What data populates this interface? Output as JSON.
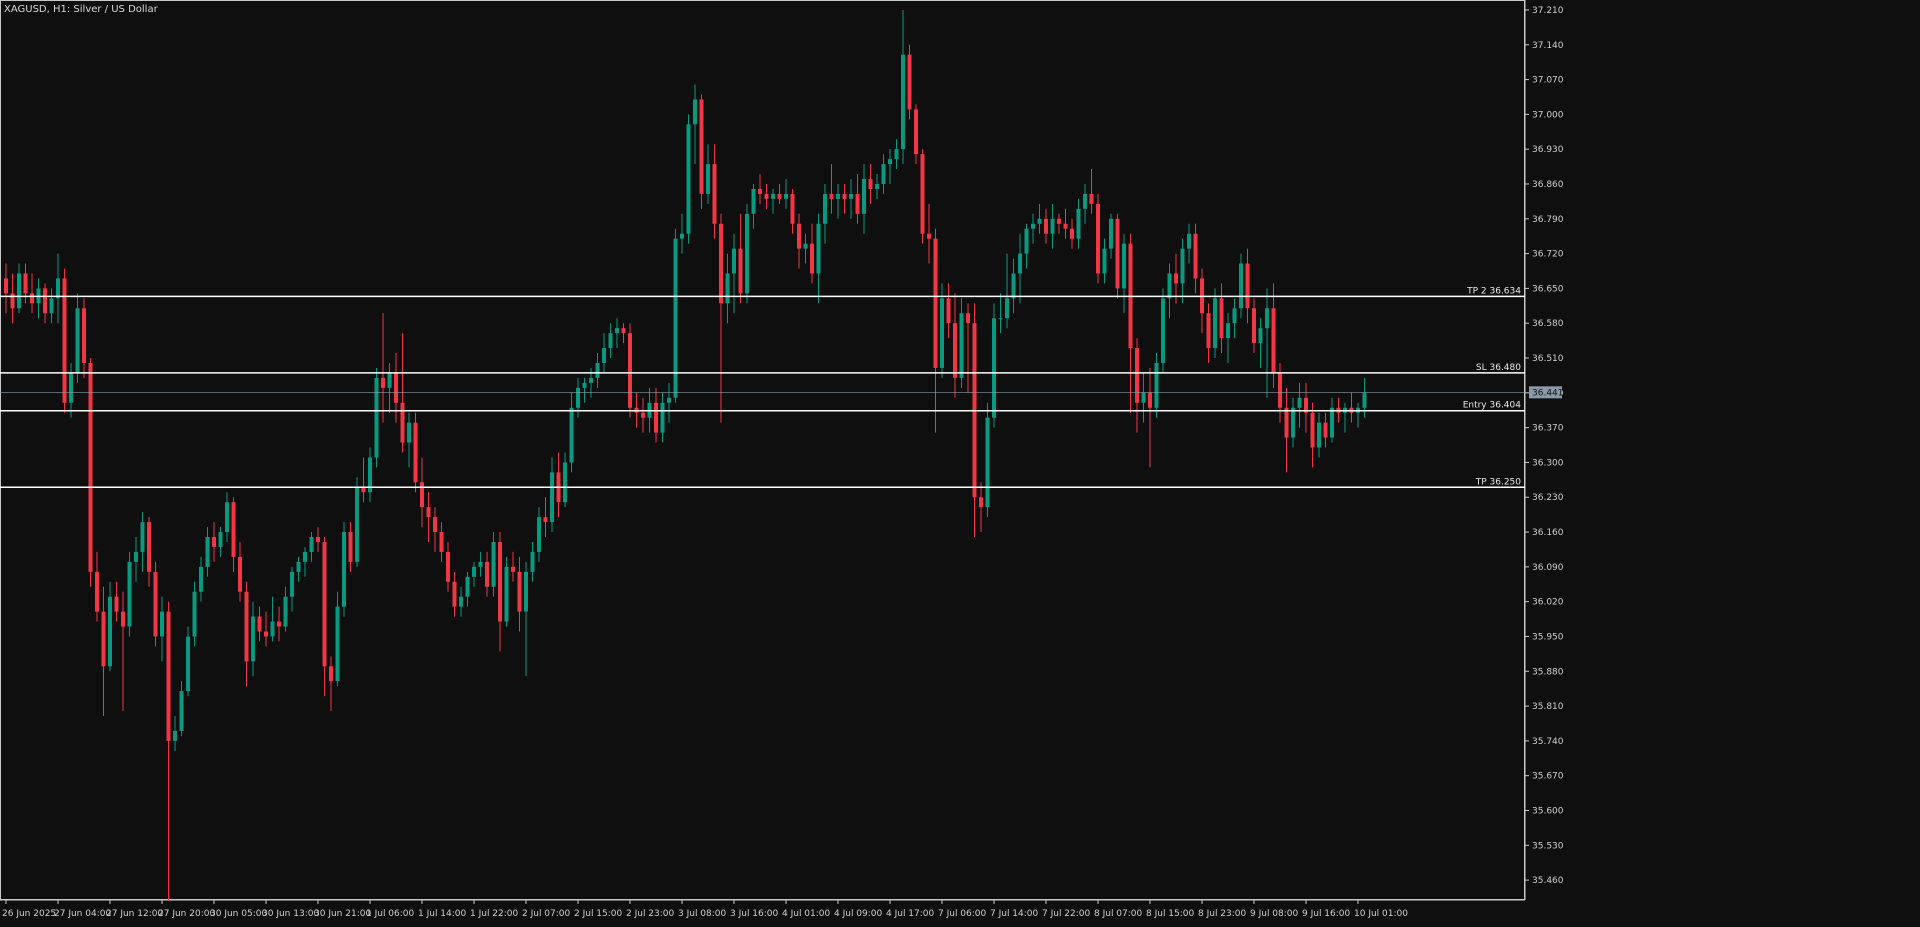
{
  "chart_data": {
    "type": "candlestick",
    "title": "XAGUSD, H1:  Silver / US Dollar",
    "symbol": "XAGUSD",
    "timeframe": "H1",
    "ylim": [
      35.42,
      37.23
    ],
    "y_ticks": [
      "37.210",
      "37.140",
      "37.070",
      "37.000",
      "36.930",
      "36.860",
      "36.790",
      "36.720",
      "36.650",
      "36.580",
      "36.510",
      "36.440",
      "36.370",
      "36.300",
      "36.230",
      "36.160",
      "36.090",
      "36.020",
      "35.950",
      "35.880",
      "35.810",
      "35.740",
      "35.670",
      "35.600",
      "35.530",
      "35.460"
    ],
    "x_ticks": [
      {
        "index": 0,
        "label": "26 Jun 2025"
      },
      {
        "index": 8,
        "label": "27 Jun 04:00"
      },
      {
        "index": 16,
        "label": "27 Jun 12:00"
      },
      {
        "index": 24,
        "label": "27 Jun 20:00"
      },
      {
        "index": 32,
        "label": "30 Jun 05:00"
      },
      {
        "index": 40,
        "label": "30 Jun 13:00"
      },
      {
        "index": 48,
        "label": "30 Jun 21:00"
      },
      {
        "index": 56,
        "label": "1 Jul 06:00"
      },
      {
        "index": 64,
        "label": "1 Jul 14:00"
      },
      {
        "index": 72,
        "label": "1 Jul 22:00"
      },
      {
        "index": 80,
        "label": "2 Jul 07:00"
      },
      {
        "index": 88,
        "label": "2 Jul 15:00"
      },
      {
        "index": 96,
        "label": "2 Jul 23:00"
      },
      {
        "index": 104,
        "label": "3 Jul 08:00"
      },
      {
        "index": 112,
        "label": "3 Jul 16:00"
      },
      {
        "index": 120,
        "label": "4 Jul 01:00"
      },
      {
        "index": 128,
        "label": "4 Jul 09:00"
      },
      {
        "index": 136,
        "label": "4 Jul 17:00"
      },
      {
        "index": 144,
        "label": "7 Jul 06:00"
      },
      {
        "index": 152,
        "label": "7 Jul 14:00"
      },
      {
        "index": 160,
        "label": "7 Jul 22:00"
      },
      {
        "index": 168,
        "label": "8 Jul 07:00"
      },
      {
        "index": 176,
        "label": "8 Jul 15:00"
      },
      {
        "index": 184,
        "label": "8 Jul 23:00"
      },
      {
        "index": 192,
        "label": "9 Jul 08:00"
      },
      {
        "index": 200,
        "label": "9 Jul 16:00"
      },
      {
        "index": 208,
        "label": "10 Jul 01:00"
      }
    ],
    "levels": [
      {
        "name": "TP 2",
        "label": "TP 2 36.634",
        "value": 36.634,
        "color": "#ffffff"
      },
      {
        "name": "SL",
        "label": "SL 36.480",
        "value": 36.48,
        "color": "#ffffff"
      },
      {
        "name": "Entry",
        "label": "Entry 36.404",
        "value": 36.404,
        "color": "#ffffff"
      },
      {
        "name": "TP",
        "label": "TP 36.250",
        "value": 36.25,
        "color": "#ffffff"
      }
    ],
    "current_price": {
      "value": 36.441,
      "label": "36.441",
      "color": "#8a9aa8"
    },
    "colors": {
      "up": "#089981",
      "down": "#f23645",
      "background": "#0f0f0f",
      "grid_text": "#d0d0d0"
    },
    "candles": [
      [
        36.67,
        36.7,
        36.6,
        36.64
      ],
      [
        36.64,
        36.68,
        36.58,
        36.61
      ],
      [
        36.61,
        36.7,
        36.6,
        36.68
      ],
      [
        36.68,
        36.7,
        36.62,
        36.64
      ],
      [
        36.64,
        36.68,
        36.6,
        36.62
      ],
      [
        36.62,
        36.67,
        36.59,
        36.65
      ],
      [
        36.65,
        36.66,
        36.58,
        36.6
      ],
      [
        36.6,
        36.65,
        36.58,
        36.63
      ],
      [
        36.63,
        36.72,
        36.58,
        36.67
      ],
      [
        36.67,
        36.69,
        36.4,
        36.42
      ],
      [
        36.42,
        36.5,
        36.39,
        36.48
      ],
      [
        36.48,
        36.64,
        36.46,
        36.61
      ],
      [
        36.61,
        36.63,
        36.47,
        36.5
      ],
      [
        36.5,
        36.51,
        36.05,
        36.08
      ],
      [
        36.08,
        36.12,
        35.98,
        36.0
      ],
      [
        36.0,
        36.05,
        35.79,
        35.89
      ],
      [
        35.89,
        36.06,
        35.88,
        36.03
      ],
      [
        36.03,
        36.06,
        35.98,
        36.0
      ],
      [
        36.0,
        36.04,
        35.8,
        35.97
      ],
      [
        35.97,
        36.12,
        35.95,
        36.1
      ],
      [
        36.1,
        36.15,
        36.06,
        36.12
      ],
      [
        36.12,
        36.2,
        36.08,
        36.18
      ],
      [
        36.18,
        36.19,
        36.05,
        36.08
      ],
      [
        36.08,
        36.1,
        35.93,
        35.95
      ],
      [
        35.95,
        36.03,
        35.9,
        36.0
      ],
      [
        36.0,
        36.02,
        35.42,
        35.74
      ],
      [
        35.74,
        35.79,
        35.72,
        35.76
      ],
      [
        35.76,
        35.86,
        35.75,
        35.84
      ],
      [
        35.84,
        35.97,
        35.83,
        35.95
      ],
      [
        35.95,
        36.06,
        35.93,
        36.04
      ],
      [
        36.04,
        36.11,
        36.02,
        36.09
      ],
      [
        36.09,
        36.17,
        36.07,
        36.15
      ],
      [
        36.15,
        36.18,
        36.1,
        36.13
      ],
      [
        36.13,
        36.17,
        36.11,
        36.16
      ],
      [
        36.16,
        36.24,
        36.14,
        36.22
      ],
      [
        36.22,
        36.23,
        36.08,
        36.11
      ],
      [
        36.11,
        36.14,
        36.02,
        36.04
      ],
      [
        36.04,
        36.06,
        35.85,
        35.9
      ],
      [
        35.9,
        36.02,
        35.87,
        35.99
      ],
      [
        35.99,
        36.01,
        35.94,
        35.96
      ],
      [
        35.96,
        36.0,
        35.93,
        35.95
      ],
      [
        35.95,
        36.03,
        35.94,
        35.98
      ],
      [
        35.98,
        36.01,
        35.94,
        35.97
      ],
      [
        35.97,
        36.05,
        35.96,
        36.03
      ],
      [
        36.03,
        36.09,
        36.0,
        36.08
      ],
      [
        36.08,
        36.11,
        36.06,
        36.1
      ],
      [
        36.1,
        36.13,
        36.07,
        36.12
      ],
      [
        36.12,
        36.16,
        36.1,
        36.15
      ],
      [
        36.15,
        36.17,
        36.12,
        36.14
      ],
      [
        36.14,
        36.15,
        35.83,
        35.89
      ],
      [
        35.89,
        35.91,
        35.8,
        35.86
      ],
      [
        35.86,
        36.04,
        35.85,
        36.01
      ],
      [
        36.01,
        36.18,
        35.99,
        36.16
      ],
      [
        36.16,
        36.18,
        36.08,
        36.1
      ],
      [
        36.1,
        36.27,
        36.09,
        36.25
      ],
      [
        36.25,
        36.31,
        36.22,
        36.24
      ],
      [
        36.24,
        36.33,
        36.22,
        36.31
      ],
      [
        36.31,
        36.49,
        36.29,
        36.47
      ],
      [
        36.47,
        36.6,
        36.38,
        36.45
      ],
      [
        36.45,
        36.5,
        36.4,
        36.48
      ],
      [
        36.48,
        36.52,
        36.38,
        36.42
      ],
      [
        36.42,
        36.56,
        36.32,
        36.34
      ],
      [
        36.34,
        36.4,
        36.29,
        36.38
      ],
      [
        36.38,
        36.4,
        36.24,
        36.26
      ],
      [
        36.26,
        36.31,
        36.17,
        36.21
      ],
      [
        36.21,
        36.24,
        36.14,
        36.19
      ],
      [
        36.19,
        36.21,
        36.12,
        36.16
      ],
      [
        36.16,
        36.18,
        36.1,
        36.12
      ],
      [
        36.12,
        36.14,
        36.04,
        36.06
      ],
      [
        36.06,
        36.08,
        35.99,
        36.01
      ],
      [
        36.01,
        36.05,
        35.99,
        36.03
      ],
      [
        36.03,
        36.08,
        36.01,
        36.07
      ],
      [
        36.07,
        36.1,
        36.05,
        36.09
      ],
      [
        36.09,
        36.12,
        36.07,
        36.1
      ],
      [
        36.1,
        36.12,
        36.03,
        36.05
      ],
      [
        36.05,
        36.16,
        36.03,
        36.14
      ],
      [
        36.14,
        36.16,
        35.92,
        35.98
      ],
      [
        35.98,
        36.11,
        35.97,
        36.09
      ],
      [
        36.09,
        36.12,
        36.06,
        36.08
      ],
      [
        36.08,
        36.11,
        35.96,
        36.0
      ],
      [
        36.0,
        36.1,
        35.87,
        36.08
      ],
      [
        36.08,
        36.14,
        36.06,
        36.12
      ],
      [
        36.12,
        36.21,
        36.1,
        36.19
      ],
      [
        36.19,
        36.23,
        36.15,
        36.18
      ],
      [
        36.18,
        36.31,
        36.16,
        36.28
      ],
      [
        36.28,
        36.32,
        36.19,
        36.22
      ],
      [
        36.22,
        36.32,
        36.21,
        36.3
      ],
      [
        36.3,
        36.44,
        36.28,
        36.41
      ],
      [
        36.41,
        36.47,
        36.39,
        36.45
      ],
      [
        36.45,
        36.47,
        36.42,
        36.46
      ],
      [
        36.46,
        36.49,
        36.43,
        36.47
      ],
      [
        36.47,
        36.52,
        36.45,
        36.5
      ],
      [
        36.5,
        36.56,
        36.48,
        36.53
      ],
      [
        36.53,
        36.58,
        36.51,
        36.56
      ],
      [
        36.56,
        36.59,
        36.53,
        36.57
      ],
      [
        36.57,
        36.58,
        36.54,
        36.56
      ],
      [
        36.56,
        36.58,
        36.39,
        36.41
      ],
      [
        36.41,
        36.44,
        36.37,
        36.4
      ],
      [
        36.4,
        36.43,
        36.36,
        36.39
      ],
      [
        36.39,
        36.45,
        36.36,
        36.42
      ],
      [
        36.42,
        36.45,
        36.34,
        36.36
      ],
      [
        36.36,
        36.44,
        36.34,
        36.42
      ],
      [
        36.42,
        36.46,
        36.38,
        36.43
      ],
      [
        36.43,
        36.77,
        36.42,
        36.75
      ],
      [
        36.75,
        36.8,
        36.72,
        36.76
      ],
      [
        36.76,
        37.0,
        36.74,
        36.98
      ],
      [
        36.98,
        37.06,
        36.9,
        37.03
      ],
      [
        37.03,
        37.04,
        36.81,
        36.84
      ],
      [
        36.84,
        36.94,
        36.82,
        36.9
      ],
      [
        36.9,
        36.94,
        36.75,
        36.78
      ],
      [
        36.78,
        36.8,
        36.38,
        36.62
      ],
      [
        36.62,
        36.72,
        36.58,
        36.68
      ],
      [
        36.68,
        36.76,
        36.6,
        36.73
      ],
      [
        36.73,
        36.8,
        36.62,
        36.64
      ],
      [
        36.64,
        36.82,
        36.62,
        36.8
      ],
      [
        36.8,
        36.86,
        36.77,
        36.85
      ],
      [
        36.85,
        36.88,
        36.82,
        36.84
      ],
      [
        36.84,
        36.86,
        36.81,
        36.83
      ],
      [
        36.83,
        36.85,
        36.8,
        36.84
      ],
      [
        36.84,
        36.86,
        36.82,
        36.83
      ],
      [
        36.83,
        36.87,
        36.81,
        36.84
      ],
      [
        36.84,
        36.85,
        36.76,
        36.78
      ],
      [
        36.78,
        36.8,
        36.69,
        36.73
      ],
      [
        36.73,
        36.76,
        36.7,
        36.74
      ],
      [
        36.74,
        36.78,
        36.66,
        36.68
      ],
      [
        36.68,
        36.8,
        36.62,
        36.78
      ],
      [
        36.78,
        36.86,
        36.74,
        36.84
      ],
      [
        36.84,
        36.9,
        36.8,
        36.83
      ],
      [
        36.83,
        36.86,
        36.79,
        36.84
      ],
      [
        36.84,
        36.86,
        36.8,
        36.83
      ],
      [
        36.83,
        36.87,
        36.79,
        36.84
      ],
      [
        36.84,
        36.88,
        36.78,
        36.8
      ],
      [
        36.8,
        36.9,
        36.76,
        36.87
      ],
      [
        36.87,
        36.9,
        36.82,
        36.85
      ],
      [
        36.85,
        36.88,
        36.83,
        36.86
      ],
      [
        36.86,
        36.92,
        36.84,
        36.9
      ],
      [
        36.9,
        36.93,
        36.86,
        36.91
      ],
      [
        36.91,
        36.95,
        36.89,
        36.93
      ],
      [
        36.93,
        37.21,
        36.9,
        37.12
      ],
      [
        37.12,
        37.14,
        36.99,
        37.01
      ],
      [
        37.01,
        37.02,
        36.9,
        36.92
      ],
      [
        36.92,
        36.93,
        36.74,
        36.76
      ],
      [
        36.76,
        36.82,
        36.7,
        36.75
      ],
      [
        36.75,
        36.77,
        36.36,
        36.49
      ],
      [
        36.49,
        36.66,
        36.47,
        36.63
      ],
      [
        36.63,
        36.66,
        36.55,
        36.58
      ],
      [
        36.58,
        36.64,
        36.43,
        36.47
      ],
      [
        36.47,
        36.63,
        36.45,
        36.6
      ],
      [
        36.6,
        36.62,
        36.44,
        36.58
      ],
      [
        36.58,
        36.62,
        36.15,
        36.23
      ],
      [
        36.23,
        36.26,
        36.16,
        36.21
      ],
      [
        36.21,
        36.42,
        36.19,
        36.39
      ],
      [
        36.39,
        36.62,
        36.37,
        36.59
      ],
      [
        36.59,
        36.64,
        36.56,
        36.59
      ],
      [
        36.59,
        36.72,
        36.57,
        36.63
      ],
      [
        36.63,
        36.71,
        36.6,
        36.68
      ],
      [
        36.68,
        36.76,
        36.62,
        36.72
      ],
      [
        36.72,
        36.78,
        36.69,
        36.77
      ],
      [
        36.77,
        36.8,
        36.74,
        36.78
      ],
      [
        36.78,
        36.82,
        36.76,
        36.79
      ],
      [
        36.79,
        36.81,
        36.74,
        36.76
      ],
      [
        36.76,
        36.82,
        36.73,
        36.79
      ],
      [
        36.79,
        36.8,
        36.76,
        36.78
      ],
      [
        36.78,
        36.81,
        36.75,
        36.77
      ],
      [
        36.77,
        36.79,
        36.73,
        36.75
      ],
      [
        36.75,
        36.83,
        36.73,
        36.81
      ],
      [
        36.81,
        36.86,
        36.78,
        36.84
      ],
      [
        36.84,
        36.89,
        36.8,
        36.82
      ],
      [
        36.82,
        36.84,
        36.66,
        36.68
      ],
      [
        36.68,
        36.75,
        36.66,
        36.73
      ],
      [
        36.73,
        36.8,
        36.71,
        36.79
      ],
      [
        36.79,
        36.8,
        36.63,
        36.65
      ],
      [
        36.65,
        36.76,
        36.6,
        36.74
      ],
      [
        36.74,
        36.76,
        36.4,
        36.53
      ],
      [
        36.53,
        36.55,
        36.36,
        36.42
      ],
      [
        36.42,
        36.48,
        36.38,
        36.44
      ],
      [
        36.44,
        36.49,
        36.29,
        36.41
      ],
      [
        36.41,
        36.52,
        36.39,
        36.5
      ],
      [
        36.5,
        36.65,
        36.48,
        36.63
      ],
      [
        36.63,
        36.7,
        36.59,
        36.68
      ],
      [
        36.68,
        36.72,
        36.62,
        36.66
      ],
      [
        36.66,
        36.75,
        36.62,
        36.73
      ],
      [
        36.73,
        36.78,
        36.7,
        36.76
      ],
      [
        36.76,
        36.78,
        36.64,
        36.67
      ],
      [
        36.67,
        36.69,
        36.56,
        36.6
      ],
      [
        36.6,
        36.62,
        36.5,
        36.53
      ],
      [
        36.53,
        36.65,
        36.51,
        36.63
      ],
      [
        36.63,
        36.66,
        36.52,
        36.55
      ],
      [
        36.55,
        36.6,
        36.5,
        36.58
      ],
      [
        36.58,
        36.63,
        36.55,
        36.61
      ],
      [
        36.61,
        36.72,
        36.59,
        36.7
      ],
      [
        36.7,
        36.73,
        36.58,
        36.61
      ],
      [
        36.61,
        36.63,
        36.52,
        36.54
      ],
      [
        36.54,
        36.59,
        36.49,
        36.57
      ],
      [
        36.57,
        36.65,
        36.43,
        36.61
      ],
      [
        36.61,
        36.66,
        36.45,
        36.48
      ],
      [
        36.48,
        36.5,
        36.38,
        36.41
      ],
      [
        36.41,
        36.45,
        36.28,
        36.35
      ],
      [
        36.35,
        36.43,
        36.33,
        36.41
      ],
      [
        36.41,
        36.46,
        36.37,
        36.43
      ],
      [
        36.43,
        36.46,
        36.36,
        36.4
      ],
      [
        36.4,
        36.42,
        36.29,
        36.33
      ],
      [
        36.33,
        36.4,
        36.31,
        36.38
      ],
      [
        36.38,
        36.4,
        36.33,
        36.35
      ],
      [
        36.35,
        36.43,
        36.34,
        36.41
      ],
      [
        36.41,
        36.43,
        36.38,
        36.4
      ],
      [
        36.4,
        36.42,
        36.36,
        36.41
      ],
      [
        36.41,
        36.44,
        36.38,
        36.4
      ],
      [
        36.4,
        36.42,
        36.37,
        36.41
      ],
      [
        36.41,
        36.47,
        36.39,
        36.44
      ]
    ]
  }
}
